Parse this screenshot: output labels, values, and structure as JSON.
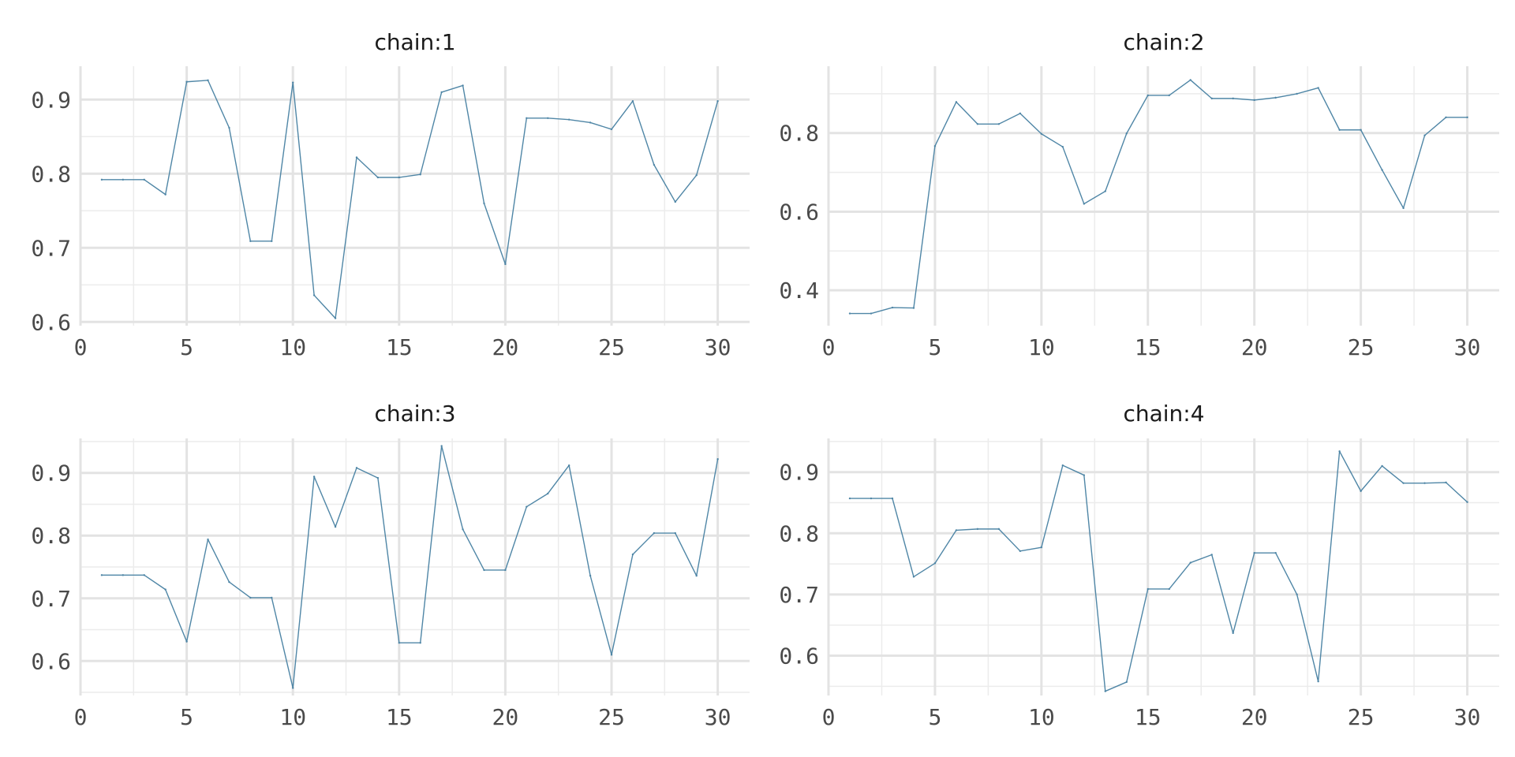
{
  "colors": {
    "series": "#4f86a6",
    "background": "#ffffff"
  },
  "chart_data": [
    {
      "type": "line",
      "title": "chain:1",
      "xlim": [
        0,
        31.5
      ],
      "ylim": [
        0.595,
        0.945
      ],
      "x_ticks": [
        0,
        5,
        10,
        15,
        20,
        25,
        30
      ],
      "x_tick_labels": [
        "0",
        "5",
        "10",
        "15",
        "20",
        "25",
        "30"
      ],
      "y_ticks": [
        0.6,
        0.7,
        0.8,
        0.9
      ],
      "y_tick_labels": [
        "0.6",
        "0.7",
        "0.8",
        "0.9"
      ],
      "x": [
        1,
        2,
        3,
        4,
        5,
        6,
        7,
        8,
        9,
        10,
        11,
        12,
        13,
        14,
        15,
        16,
        17,
        18,
        19,
        20,
        21,
        22,
        23,
        24,
        25,
        26,
        27,
        28,
        29,
        30
      ],
      "y": [
        0.792,
        0.792,
        0.792,
        0.772,
        0.924,
        0.926,
        0.862,
        0.709,
        0.709,
        0.923,
        0.636,
        0.605,
        0.822,
        0.795,
        0.795,
        0.799,
        0.91,
        0.919,
        0.76,
        0.678,
        0.875,
        0.875,
        0.873,
        0.869,
        0.86,
        0.898,
        0.812,
        0.762,
        0.798,
        0.898
      ],
      "grid": true
    },
    {
      "type": "line",
      "title": "chain:2",
      "xlim": [
        0,
        31.5
      ],
      "ylim": [
        0.31,
        0.97
      ],
      "x_ticks": [
        0,
        5,
        10,
        15,
        20,
        25,
        30
      ],
      "x_tick_labels": [
        "0",
        "5",
        "10",
        "15",
        "20",
        "25",
        "30"
      ],
      "y_ticks": [
        0.4,
        0.6,
        0.8
      ],
      "y_tick_labels": [
        "0.4",
        "0.6",
        "0.8"
      ],
      "x": [
        1,
        2,
        3,
        4,
        5,
        6,
        7,
        8,
        9,
        10,
        11,
        12,
        13,
        14,
        15,
        16,
        17,
        18,
        19,
        20,
        21,
        22,
        23,
        24,
        25,
        26,
        27,
        28,
        29,
        30
      ],
      "y": [
        0.341,
        0.341,
        0.356,
        0.355,
        0.767,
        0.879,
        0.823,
        0.823,
        0.85,
        0.798,
        0.765,
        0.62,
        0.652,
        0.799,
        0.896,
        0.896,
        0.935,
        0.888,
        0.888,
        0.884,
        0.89,
        0.9,
        0.915,
        0.808,
        0.808,
        0.706,
        0.609,
        0.794,
        0.84,
        0.84
      ],
      "grid": true
    },
    {
      "type": "line",
      "title": "chain:3",
      "xlim": [
        0,
        31.5
      ],
      "ylim": [
        0.545,
        0.955
      ],
      "x_ticks": [
        0,
        5,
        10,
        15,
        20,
        25,
        30
      ],
      "x_tick_labels": [
        "0",
        "5",
        "10",
        "15",
        "20",
        "25",
        "30"
      ],
      "y_ticks": [
        0.6,
        0.7,
        0.8,
        0.9
      ],
      "y_tick_labels": [
        "0.6",
        "0.7",
        "0.8",
        "0.9"
      ],
      "x": [
        1,
        2,
        3,
        4,
        5,
        6,
        7,
        8,
        9,
        10,
        11,
        12,
        13,
        14,
        15,
        16,
        17,
        18,
        19,
        20,
        21,
        22,
        23,
        24,
        25,
        26,
        27,
        28,
        29,
        30
      ],
      "y": [
        0.737,
        0.737,
        0.737,
        0.714,
        0.631,
        0.794,
        0.726,
        0.701,
        0.701,
        0.557,
        0.894,
        0.814,
        0.908,
        0.892,
        0.629,
        0.629,
        0.943,
        0.81,
        0.745,
        0.745,
        0.846,
        0.867,
        0.912,
        0.736,
        0.61,
        0.77,
        0.804,
        0.804,
        0.736,
        0.922
      ],
      "grid": true
    },
    {
      "type": "line",
      "title": "chain:4",
      "xlim": [
        0,
        31.5
      ],
      "ylim": [
        0.535,
        0.955
      ],
      "x_ticks": [
        0,
        5,
        10,
        15,
        20,
        25,
        30
      ],
      "x_tick_labels": [
        "0",
        "5",
        "10",
        "15",
        "20",
        "25",
        "30"
      ],
      "y_ticks": [
        0.6,
        0.7,
        0.8,
        0.9
      ],
      "y_tick_labels": [
        "0.6",
        "0.7",
        "0.8",
        "0.9"
      ],
      "x": [
        1,
        2,
        3,
        4,
        5,
        6,
        7,
        8,
        9,
        10,
        11,
        12,
        13,
        14,
        15,
        16,
        17,
        18,
        19,
        20,
        21,
        22,
        23,
        24,
        25,
        26,
        27,
        28,
        29,
        30
      ],
      "y": [
        0.857,
        0.857,
        0.857,
        0.729,
        0.751,
        0.805,
        0.807,
        0.807,
        0.771,
        0.777,
        0.911,
        0.895,
        0.542,
        0.557,
        0.709,
        0.709,
        0.752,
        0.765,
        0.637,
        0.768,
        0.768,
        0.7,
        0.558,
        0.934,
        0.869,
        0.91,
        0.882,
        0.882,
        0.883,
        0.851
      ],
      "grid": true
    }
  ]
}
